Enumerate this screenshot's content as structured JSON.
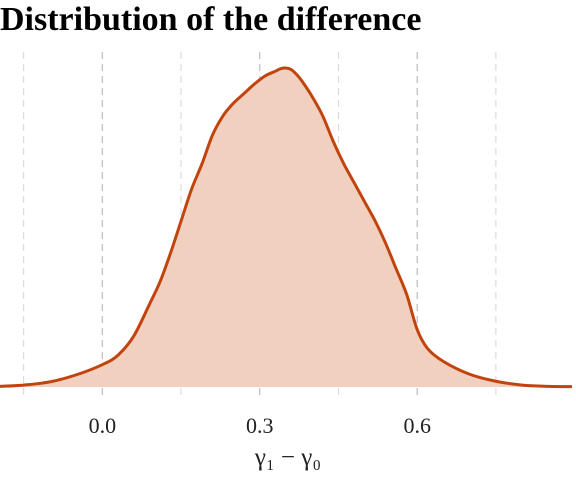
{
  "chart_data": {
    "type": "area",
    "title": "Distribution of the difference",
    "xlabel": "γ₁ − γ₀",
    "ylabel": "",
    "xlim": [
      -0.195,
      0.895
    ],
    "ylim": [
      0,
      1.0
    ],
    "xticks": [
      0.0,
      0.3,
      0.6
    ],
    "xtick_labels": [
      "0.0",
      "0.3",
      "0.6"
    ],
    "major_gridlines_x": [
      0.0,
      0.3,
      0.6
    ],
    "minor_gridlines_x": [
      -0.15,
      0.15,
      0.45,
      0.75
    ],
    "grid": true,
    "y_axis_visible": false,
    "colors": {
      "line": "#c1440e",
      "fill": "#f2d0c0",
      "grid": "#bdbdbd"
    },
    "x": [
      -0.195,
      -0.15,
      -0.1,
      -0.05,
      0.0,
      0.03,
      0.06,
      0.09,
      0.11,
      0.13,
      0.15,
      0.17,
      0.19,
      0.21,
      0.23,
      0.25,
      0.27,
      0.29,
      0.31,
      0.33,
      0.34,
      0.35,
      0.36,
      0.37,
      0.38,
      0.4,
      0.42,
      0.44,
      0.46,
      0.48,
      0.5,
      0.52,
      0.54,
      0.56,
      0.58,
      0.6,
      0.62,
      0.65,
      0.7,
      0.75,
      0.8,
      0.85,
      0.895
    ],
    "y": [
      0.002,
      0.006,
      0.016,
      0.038,
      0.07,
      0.1,
      0.16,
      0.26,
      0.33,
      0.42,
      0.52,
      0.62,
      0.7,
      0.79,
      0.85,
      0.89,
      0.92,
      0.95,
      0.975,
      0.99,
      0.998,
      1.0,
      0.995,
      0.98,
      0.96,
      0.91,
      0.85,
      0.77,
      0.7,
      0.64,
      0.58,
      0.52,
      0.45,
      0.37,
      0.29,
      0.18,
      0.12,
      0.08,
      0.04,
      0.018,
      0.006,
      0.002,
      0.001
    ]
  }
}
